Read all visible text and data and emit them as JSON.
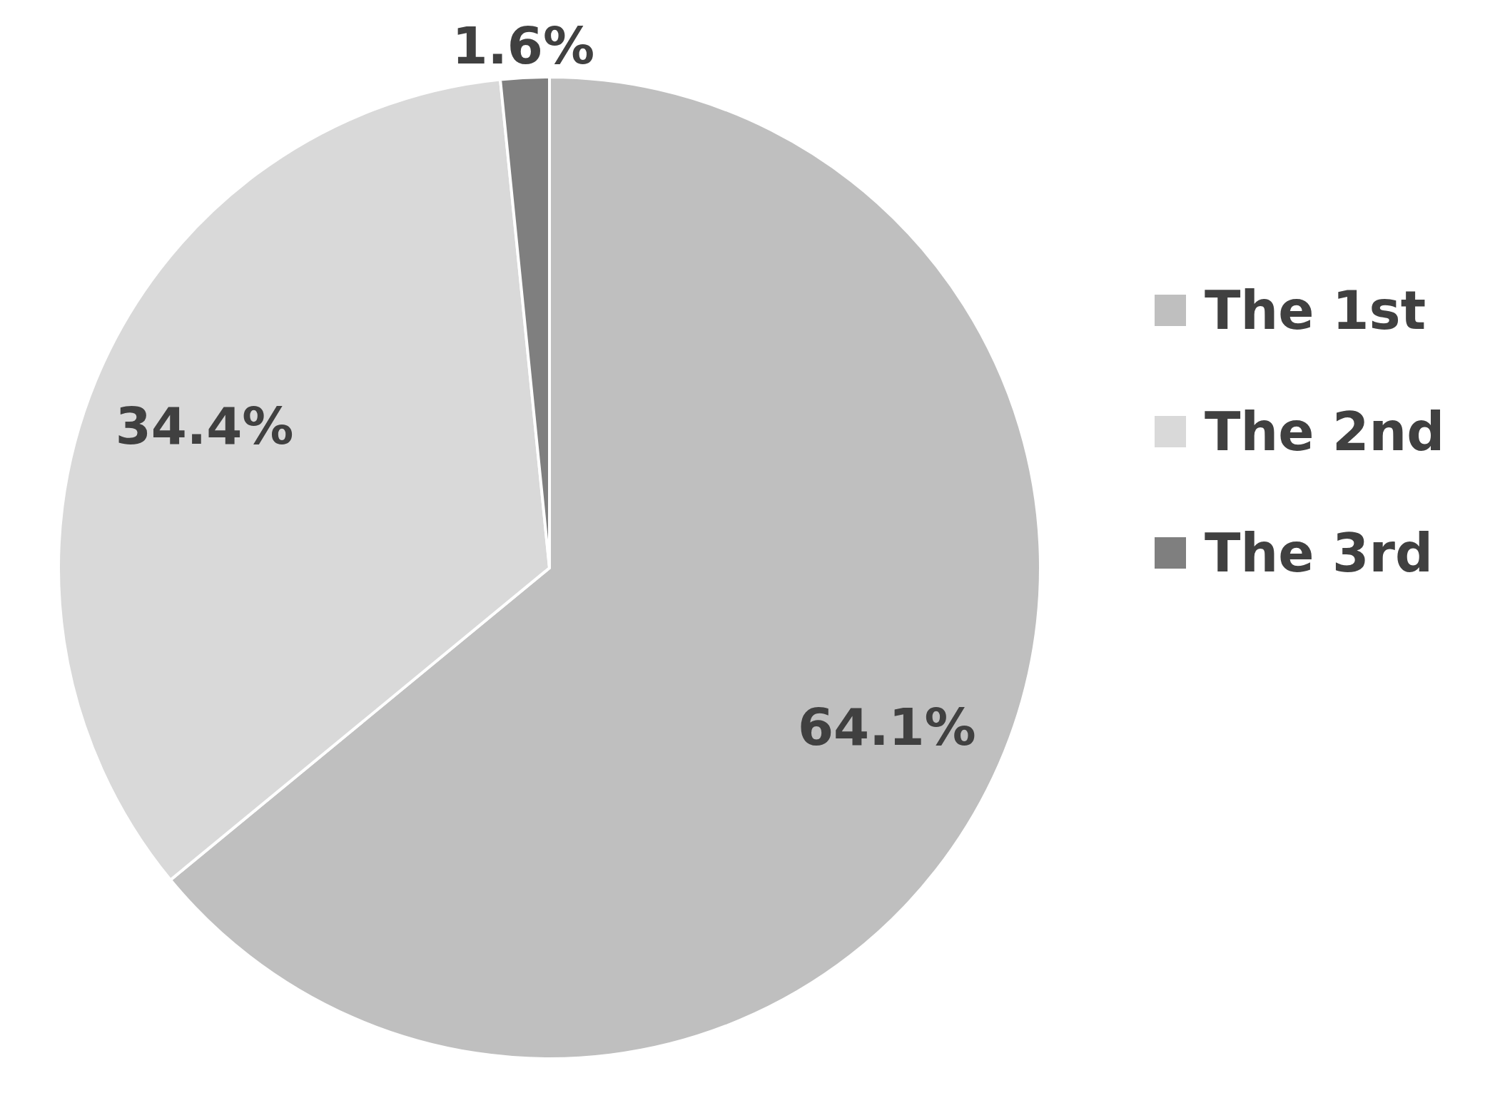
{
  "chart_data": {
    "type": "pie",
    "categories": [
      "The 1st",
      "The 2nd",
      "The 3rd"
    ],
    "values": [
      64.1,
      34.4,
      1.6
    ],
    "colors": [
      "#bfbfbf",
      "#d9d9d9",
      "#7f7f7f"
    ],
    "value_labels": [
      "64.1%",
      "34.4%",
      "1.6%"
    ],
    "legend": "right"
  }
}
